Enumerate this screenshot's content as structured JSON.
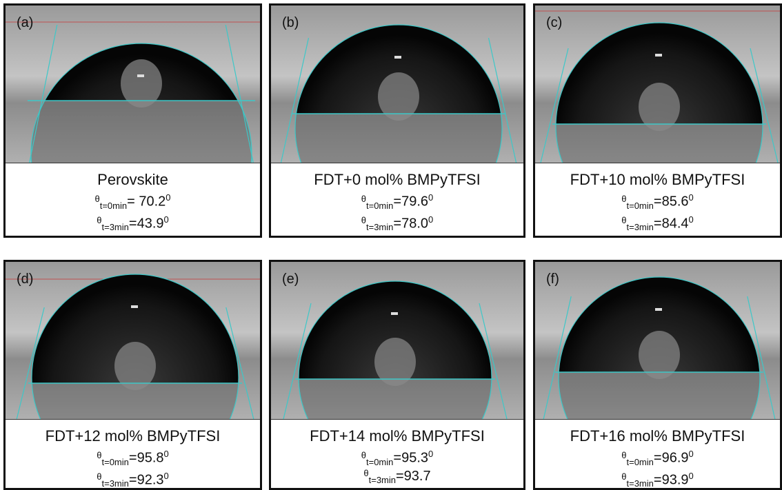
{
  "panels": [
    {
      "label": "(a)",
      "title": "Perovskite",
      "angles": [
        {
          "symbol": "θ",
          "subscript": "t=0min",
          "value": "= 70.2",
          "superscript": "0"
        },
        {
          "symbol": "θ",
          "subscript": "t=3min",
          "value": "=43.9",
          "superscript": "0"
        }
      ]
    },
    {
      "label": "(b)",
      "title": "FDT+0 mol% BMPyTFSI",
      "angles": [
        {
          "symbol": "θ",
          "subscript": "t=0min",
          "value": "=79.6",
          "superscript": "0"
        },
        {
          "symbol": "θ",
          "subscript": "t=3min",
          "value": "=78.0",
          "superscript": "0"
        }
      ]
    },
    {
      "label": "(c)",
      "title": "FDT+10 mol% BMPyTFSI",
      "angles": [
        {
          "symbol": "θ",
          "subscript": "t=0min",
          "value": "=85.6",
          "superscript": "0"
        },
        {
          "symbol": "θ",
          "subscript": "t=3min",
          "value": "=84.4",
          "superscript": "0"
        }
      ]
    },
    {
      "label": "(d)",
      "title": "FDT+12 mol% BMPyTFSI",
      "angles": [
        {
          "symbol": "θ",
          "subscript": "t=0min",
          "value": "=95.8",
          "superscript": "0"
        },
        {
          "symbol": "θ",
          "subscript": "t=3min",
          "value": "=92.3",
          "superscript": "0"
        }
      ]
    },
    {
      "label": "(e)",
      "title": "FDT+14 mol% BMPyTFSI",
      "angles": [
        {
          "symbol": "θ",
          "subscript": "t=0min",
          "value": "=95.3",
          "superscript": "0"
        },
        {
          "symbol": "θ",
          "subscript": "t=3min",
          "value": "=93.7"
        }
      ]
    },
    {
      "label": "(f)",
      "title": "FDT+16 mol% BMPyTFSI",
      "angles": [
        {
          "symbol": "θ",
          "subscript": "t=0min",
          "value": "=96.9",
          "superscript": "0"
        },
        {
          "symbol": "θ",
          "subscript": "t=3min",
          "value": "=93.9",
          "superscript": "0"
        }
      ]
    }
  ]
}
